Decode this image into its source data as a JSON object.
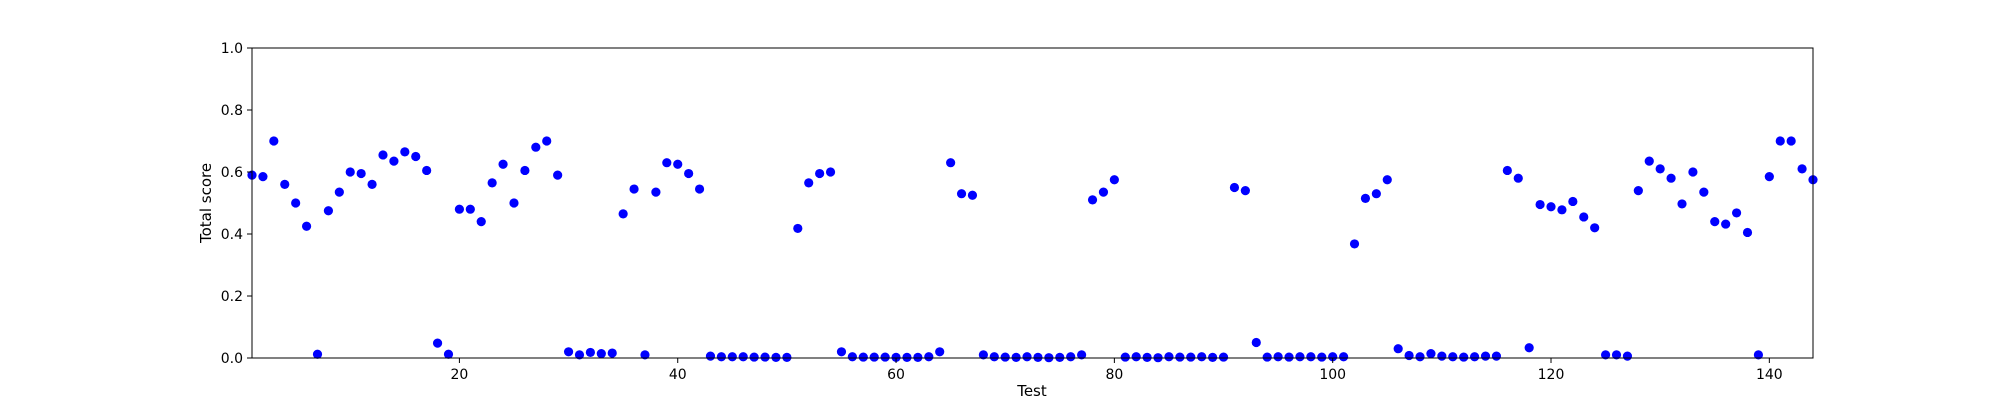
{
  "chart_data": {
    "type": "scatter",
    "xlabel": "Test",
    "ylabel": "Total score",
    "xlim": [
      1,
      144
    ],
    "ylim": [
      0,
      1.0
    ],
    "xticks": [
      20,
      40,
      60,
      80,
      100,
      120,
      140
    ],
    "yticks": [
      0.0,
      0.2,
      0.4,
      0.6,
      0.8,
      1.0
    ],
    "xtick_labels": [
      "20",
      "40",
      "60",
      "80",
      "100",
      "120",
      "140"
    ],
    "ytick_labels": [
      "0.0",
      "0.2",
      "0.4",
      "0.6",
      "0.8",
      "1.0"
    ],
    "grid": false,
    "marker_color": "#0000ff",
    "series": [
      {
        "points": [
          [
            1,
            0.59
          ],
          [
            2,
            0.585
          ],
          [
            3,
            0.7
          ],
          [
            4,
            0.56
          ],
          [
            5,
            0.5
          ],
          [
            6,
            0.425
          ],
          [
            7,
            0.012
          ],
          [
            8,
            0.475
          ],
          [
            9,
            0.535
          ],
          [
            10,
            0.6
          ],
          [
            11,
            0.595
          ],
          [
            12,
            0.56
          ],
          [
            13,
            0.655
          ],
          [
            14,
            0.635
          ],
          [
            15,
            0.665
          ],
          [
            16,
            0.65
          ],
          [
            17,
            0.605
          ],
          [
            18,
            0.048
          ],
          [
            19,
            0.012
          ],
          [
            20,
            0.48
          ],
          [
            21,
            0.48
          ],
          [
            22,
            0.44
          ],
          [
            23,
            0.565
          ],
          [
            24,
            0.625
          ],
          [
            25,
            0.5
          ],
          [
            26,
            0.605
          ],
          [
            27,
            0.68
          ],
          [
            28,
            0.7
          ],
          [
            29,
            0.59
          ],
          [
            30,
            0.02
          ],
          [
            31,
            0.01
          ],
          [
            32,
            0.018
          ],
          [
            33,
            0.014
          ],
          [
            34,
            0.016
          ],
          [
            35,
            0.465
          ],
          [
            36,
            0.545
          ],
          [
            37,
            0.01
          ],
          [
            38,
            0.535
          ],
          [
            39,
            0.63
          ],
          [
            40,
            0.625
          ],
          [
            41,
            0.595
          ],
          [
            42,
            0.545
          ],
          [
            43,
            0.006
          ],
          [
            44,
            0.004
          ],
          [
            45,
            0.004
          ],
          [
            46,
            0.004
          ],
          [
            47,
            0.003
          ],
          [
            48,
            0.003
          ],
          [
            49,
            0.002
          ],
          [
            50,
            0.002
          ],
          [
            51,
            0.418
          ],
          [
            52,
            0.565
          ],
          [
            53,
            0.595
          ],
          [
            54,
            0.6
          ],
          [
            55,
            0.02
          ],
          [
            56,
            0.004
          ],
          [
            57,
            0.003
          ],
          [
            58,
            0.003
          ],
          [
            59,
            0.003
          ],
          [
            60,
            0.002
          ],
          [
            61,
            0.002
          ],
          [
            62,
            0.002
          ],
          [
            63,
            0.004
          ],
          [
            64,
            0.02
          ],
          [
            65,
            0.63
          ],
          [
            66,
            0.53
          ],
          [
            67,
            0.525
          ],
          [
            68,
            0.01
          ],
          [
            69,
            0.004
          ],
          [
            70,
            0.003
          ],
          [
            71,
            0.002
          ],
          [
            72,
            0.004
          ],
          [
            73,
            0.002
          ],
          [
            74,
            0.001
          ],
          [
            75,
            0.002
          ],
          [
            76,
            0.004
          ],
          [
            77,
            0.01
          ],
          [
            78,
            0.51
          ],
          [
            79,
            0.535
          ],
          [
            80,
            0.575
          ],
          [
            81,
            0.003
          ],
          [
            82,
            0.004
          ],
          [
            83,
            0.002
          ],
          [
            84,
            0.001
          ],
          [
            85,
            0.004
          ],
          [
            86,
            0.003
          ],
          [
            87,
            0.003
          ],
          [
            88,
            0.004
          ],
          [
            89,
            0.002
          ],
          [
            90,
            0.003
          ],
          [
            91,
            0.55
          ],
          [
            92,
            0.54
          ],
          [
            93,
            0.05
          ],
          [
            94,
            0.003
          ],
          [
            95,
            0.004
          ],
          [
            96,
            0.003
          ],
          [
            97,
            0.004
          ],
          [
            98,
            0.004
          ],
          [
            99,
            0.003
          ],
          [
            100,
            0.004
          ],
          [
            101,
            0.004
          ],
          [
            102,
            0.368
          ],
          [
            103,
            0.515
          ],
          [
            104,
            0.53
          ],
          [
            105,
            0.575
          ],
          [
            106,
            0.03
          ],
          [
            107,
            0.008
          ],
          [
            108,
            0.004
          ],
          [
            109,
            0.014
          ],
          [
            110,
            0.006
          ],
          [
            111,
            0.004
          ],
          [
            112,
            0.003
          ],
          [
            113,
            0.004
          ],
          [
            114,
            0.006
          ],
          [
            115,
            0.006
          ],
          [
            116,
            0.605
          ],
          [
            117,
            0.58
          ],
          [
            118,
            0.033
          ],
          [
            119,
            0.495
          ],
          [
            120,
            0.488
          ],
          [
            121,
            0.478
          ],
          [
            122,
            0.505
          ],
          [
            123,
            0.455
          ],
          [
            124,
            0.42
          ],
          [
            125,
            0.01
          ],
          [
            126,
            0.01
          ],
          [
            127,
            0.006
          ],
          [
            128,
            0.54
          ],
          [
            129,
            0.635
          ],
          [
            130,
            0.61
          ],
          [
            131,
            0.58
          ],
          [
            132,
            0.497
          ],
          [
            133,
            0.6
          ],
          [
            134,
            0.535
          ],
          [
            135,
            0.44
          ],
          [
            136,
            0.432
          ],
          [
            137,
            0.468
          ],
          [
            138,
            0.405
          ],
          [
            139,
            0.01
          ],
          [
            140,
            0.585
          ],
          [
            141,
            0.7
          ],
          [
            142,
            0.7
          ],
          [
            143,
            0.61
          ],
          [
            144,
            0.575
          ]
        ]
      }
    ]
  }
}
